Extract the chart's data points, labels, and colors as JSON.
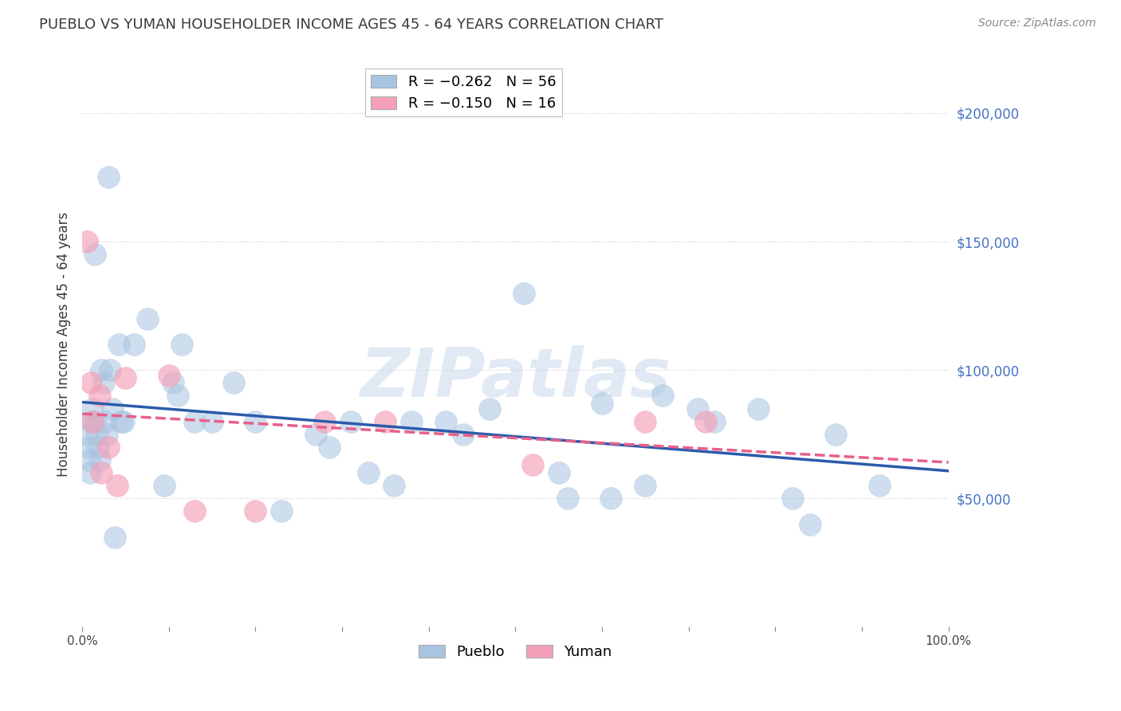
{
  "title": "PUEBLO VS YUMAN HOUSEHOLDER INCOME AGES 45 - 64 YEARS CORRELATION CHART",
  "source": "Source: ZipAtlas.com",
  "ylabel": "Householder Income Ages 45 - 64 years",
  "ytick_values": [
    50000,
    100000,
    150000,
    200000
  ],
  "xmin": 0.0,
  "xmax": 1.0,
  "ymin": 0,
  "ymax": 220000,
  "pueblo_color": "#a8c4e0",
  "yuman_color": "#f4a0b8",
  "pueblo_line_color": "#2b5bab",
  "yuman_line_color": "#e8608a",
  "pueblo_R": -0.262,
  "pueblo_N": 56,
  "yuman_R": -0.15,
  "yuman_N": 16,
  "pueblo_x": [
    0.005,
    0.007,
    0.008,
    0.009,
    0.01,
    0.012,
    0.015,
    0.015,
    0.016,
    0.018,
    0.02,
    0.022,
    0.025,
    0.027,
    0.028,
    0.03,
    0.032,
    0.035,
    0.038,
    0.042,
    0.045,
    0.048,
    0.06,
    0.075,
    0.095,
    0.105,
    0.11,
    0.115,
    0.13,
    0.15,
    0.175,
    0.2,
    0.23,
    0.27,
    0.285,
    0.31,
    0.33,
    0.36,
    0.38,
    0.42,
    0.44,
    0.47,
    0.51,
    0.55,
    0.56,
    0.6,
    0.61,
    0.65,
    0.67,
    0.71,
    0.73,
    0.78,
    0.82,
    0.84,
    0.87,
    0.92
  ],
  "pueblo_y": [
    75000,
    70000,
    65000,
    60000,
    80000,
    85000,
    145000,
    80000,
    75000,
    70000,
    65000,
    100000,
    95000,
    80000,
    75000,
    175000,
    100000,
    85000,
    35000,
    110000,
    80000,
    80000,
    110000,
    120000,
    55000,
    95000,
    90000,
    110000,
    80000,
    80000,
    95000,
    80000,
    45000,
    75000,
    70000,
    80000,
    60000,
    55000,
    80000,
    80000,
    75000,
    85000,
    130000,
    60000,
    50000,
    87000,
    50000,
    55000,
    90000,
    85000,
    80000,
    85000,
    50000,
    40000,
    75000,
    55000
  ],
  "yuman_x": [
    0.005,
    0.01,
    0.012,
    0.02,
    0.022,
    0.03,
    0.04,
    0.05,
    0.1,
    0.13,
    0.2,
    0.28,
    0.35,
    0.52,
    0.65,
    0.72
  ],
  "yuman_y": [
    150000,
    95000,
    80000,
    90000,
    60000,
    70000,
    55000,
    97000,
    98000,
    45000,
    45000,
    80000,
    80000,
    63000,
    80000,
    80000
  ],
  "watermark": "ZIPatlas",
  "background_color": "#ffffff",
  "grid_color": "#cccccc",
  "title_color": "#3a3a3a",
  "axis_label_color": "#3a3a3a",
  "right_ytick_color": "#4472c4",
  "source_color": "#888888"
}
